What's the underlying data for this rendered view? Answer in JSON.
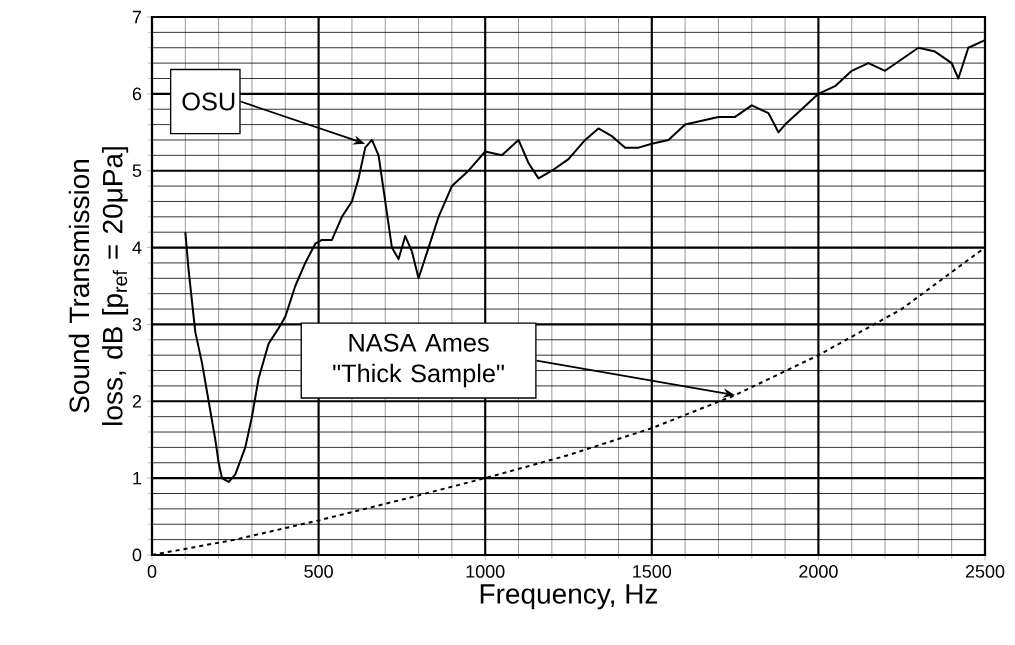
{
  "chart_data": {
    "type": "line",
    "xlabel": "Frequency, Hz",
    "ylabel": "Sound Transmission loss, dB [p$_{ref}$ = 20μPa]",
    "xlim": [
      0,
      2500
    ],
    "ylim": [
      0,
      7
    ],
    "xticks": [
      0,
      500,
      1000,
      1500,
      2000,
      2500
    ],
    "yticks": [
      0,
      1,
      2,
      3,
      4,
      5,
      6,
      7
    ],
    "grid": true,
    "marker": "none",
    "series": [
      {
        "color": "#000000",
        "line_style": "solid",
        "x": [
          100,
          110,
          130,
          150,
          170,
          190,
          200,
          210,
          230,
          250,
          280,
          300,
          320,
          350,
          380,
          400,
          430,
          460,
          490,
          510,
          540,
          570,
          600,
          620,
          640,
          660,
          680,
          700,
          720,
          740,
          760,
          780,
          800,
          830,
          860,
          900,
          950,
          1000,
          1050,
          1100,
          1130,
          1160,
          1200,
          1250,
          1300,
          1340,
          1380,
          1420,
          1460,
          1500,
          1550,
          1600,
          1650,
          1700,
          1750,
          1800,
          1850,
          1880,
          1900,
          1950,
          2000,
          2050,
          2100,
          2150,
          2200,
          2250,
          2300,
          2350,
          2400,
          2420,
          2450,
          2500
        ],
        "values": [
          4.2,
          3.7,
          2.9,
          2.5,
          2.0,
          1.5,
          1.2,
          1.0,
          0.95,
          1.05,
          1.4,
          1.8,
          2.3,
          2.75,
          2.95,
          3.1,
          3.5,
          3.8,
          4.05,
          4.1,
          4.1,
          4.4,
          4.6,
          4.9,
          5.3,
          5.4,
          5.2,
          4.6,
          4.0,
          3.85,
          4.15,
          3.95,
          3.6,
          4.0,
          4.4,
          4.8,
          5.0,
          5.25,
          5.2,
          5.4,
          5.1,
          4.9,
          5.0,
          5.15,
          5.4,
          5.55,
          5.45,
          5.3,
          5.3,
          5.35,
          5.4,
          5.6,
          5.65,
          5.7,
          5.7,
          5.85,
          5.75,
          5.5,
          5.6,
          5.8,
          6.0,
          6.1,
          6.3,
          6.4,
          6.3,
          6.45,
          6.6,
          6.55,
          6.4,
          6.2,
          6.6,
          6.7
        ]
      },
      {
        "color": "#000000",
        "line_style": "dashed",
        "x": [
          0,
          250,
          500,
          750,
          1000,
          1250,
          1500,
          1750,
          2000,
          2250,
          2500
        ],
        "values": [
          0,
          0.2,
          0.45,
          0.72,
          1.0,
          1.3,
          1.65,
          2.08,
          2.6,
          3.2,
          4.0
        ]
      }
    ],
    "annotations": [
      {
        "text": "OSU",
        "x": 640,
        "y": 5.35
      },
      {
        "text": "NASA Ames \"Thick Sample\"",
        "x": 1750,
        "y": 2.08
      }
    ]
  }
}
